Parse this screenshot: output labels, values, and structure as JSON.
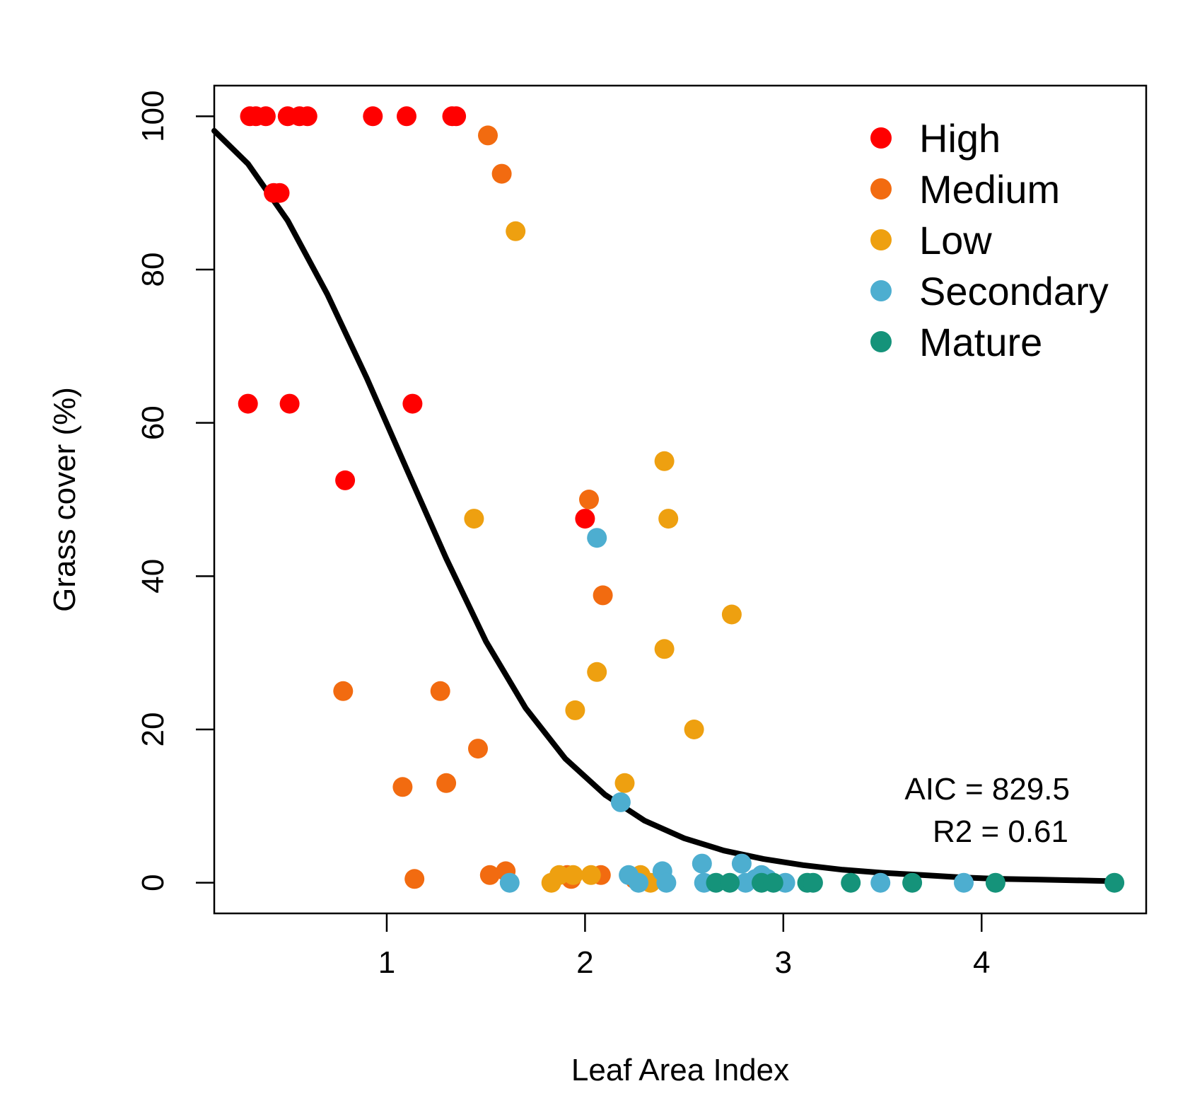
{
  "chart_data": {
    "type": "scatter",
    "xlabel": "Leaf Area Index",
    "ylabel": "Grass cover (%)",
    "xlim": [
      0.13,
      4.83
    ],
    "ylim": [
      -4,
      104
    ],
    "x_ticks": [
      1,
      2,
      3,
      4
    ],
    "y_ticks": [
      0,
      20,
      40,
      60,
      80,
      100
    ],
    "grid": false,
    "legend_position": "top-right",
    "series": [
      {
        "name": "High",
        "color": "#ff0000",
        "points": [
          [
            0.31,
            100
          ],
          [
            0.34,
            100
          ],
          [
            0.39,
            100
          ],
          [
            0.5,
            100
          ],
          [
            0.56,
            100
          ],
          [
            0.6,
            100
          ],
          [
            0.93,
            100
          ],
          [
            1.1,
            100
          ],
          [
            1.33,
            100
          ],
          [
            1.35,
            100
          ],
          [
            0.43,
            90
          ],
          [
            0.46,
            90
          ],
          [
            0.3,
            62.5
          ],
          [
            0.51,
            62.5
          ],
          [
            1.13,
            62.5
          ],
          [
            0.79,
            52.5
          ],
          [
            2.0,
            47.5
          ]
        ]
      },
      {
        "name": "Medium",
        "color": "#f26b10",
        "points": [
          [
            1.51,
            97.5
          ],
          [
            1.58,
            92.5
          ],
          [
            2.02,
            50
          ],
          [
            2.09,
            37.5
          ],
          [
            0.78,
            25
          ],
          [
            1.27,
            25
          ],
          [
            1.46,
            17.5
          ],
          [
            1.08,
            12.5
          ],
          [
            1.3,
            13
          ],
          [
            1.14,
            0.5
          ],
          [
            1.52,
            1
          ],
          [
            1.6,
            1.5
          ],
          [
            1.91,
            1
          ],
          [
            1.93,
            0.5
          ],
          [
            2.08,
            1
          ],
          [
            2.25,
            0.5
          ]
        ]
      },
      {
        "name": "Low",
        "color": "#eea010",
        "points": [
          [
            1.65,
            85
          ],
          [
            2.4,
            55
          ],
          [
            1.44,
            47.5
          ],
          [
            2.42,
            47.5
          ],
          [
            2.74,
            35
          ],
          [
            2.4,
            30.5
          ],
          [
            2.06,
            27.5
          ],
          [
            1.95,
            22.5
          ],
          [
            2.55,
            20
          ],
          [
            2.2,
            13
          ],
          [
            1.83,
            0
          ],
          [
            1.87,
            1
          ],
          [
            1.94,
            1
          ],
          [
            2.03,
            1
          ],
          [
            2.28,
            1
          ],
          [
            2.33,
            0
          ]
        ]
      },
      {
        "name": "Secondary",
        "color": "#4daed0",
        "points": [
          [
            2.06,
            45
          ],
          [
            2.18,
            10.5
          ],
          [
            1.62,
            0
          ],
          [
            2.22,
            1
          ],
          [
            2.27,
            0
          ],
          [
            2.39,
            1.5
          ],
          [
            2.41,
            0
          ],
          [
            2.59,
            2.5
          ],
          [
            2.6,
            0
          ],
          [
            2.79,
            2.5
          ],
          [
            2.81,
            0
          ],
          [
            2.86,
            0.5
          ],
          [
            2.89,
            1
          ],
          [
            2.92,
            0.5
          ],
          [
            3.01,
            0
          ],
          [
            3.49,
            0
          ],
          [
            3.91,
            0
          ]
        ]
      },
      {
        "name": "Mature",
        "color": "#15937a",
        "points": [
          [
            2.66,
            0
          ],
          [
            2.73,
            0
          ],
          [
            2.89,
            0
          ],
          [
            2.95,
            0
          ],
          [
            3.12,
            0
          ],
          [
            3.15,
            0
          ],
          [
            3.34,
            0
          ],
          [
            3.65,
            0
          ],
          [
            4.07,
            0
          ],
          [
            4.67,
            0
          ]
        ]
      }
    ],
    "fit_curve": {
      "color": "#000000",
      "points": [
        [
          0.13,
          98.1
        ],
        [
          0.3,
          93.8
        ],
        [
          0.5,
          86.4
        ],
        [
          0.7,
          76.8
        ],
        [
          0.9,
          65.8
        ],
        [
          1.1,
          54.0
        ],
        [
          1.3,
          42.3
        ],
        [
          1.5,
          31.5
        ],
        [
          1.7,
          22.8
        ],
        [
          1.9,
          16.2
        ],
        [
          2.1,
          11.5
        ],
        [
          2.3,
          8.1
        ],
        [
          2.5,
          5.8
        ],
        [
          2.7,
          4.2
        ],
        [
          2.9,
          3.1
        ],
        [
          3.1,
          2.3
        ],
        [
          3.3,
          1.7
        ],
        [
          3.5,
          1.3
        ],
        [
          3.7,
          1.0
        ],
        [
          3.9,
          0.7
        ],
        [
          4.1,
          0.5
        ],
        [
          4.3,
          0.4
        ],
        [
          4.5,
          0.3
        ],
        [
          4.67,
          0.2
        ]
      ]
    },
    "annotations": {
      "aic": "AIC = 829.5",
      "r2": "R2 =  0.61"
    }
  }
}
